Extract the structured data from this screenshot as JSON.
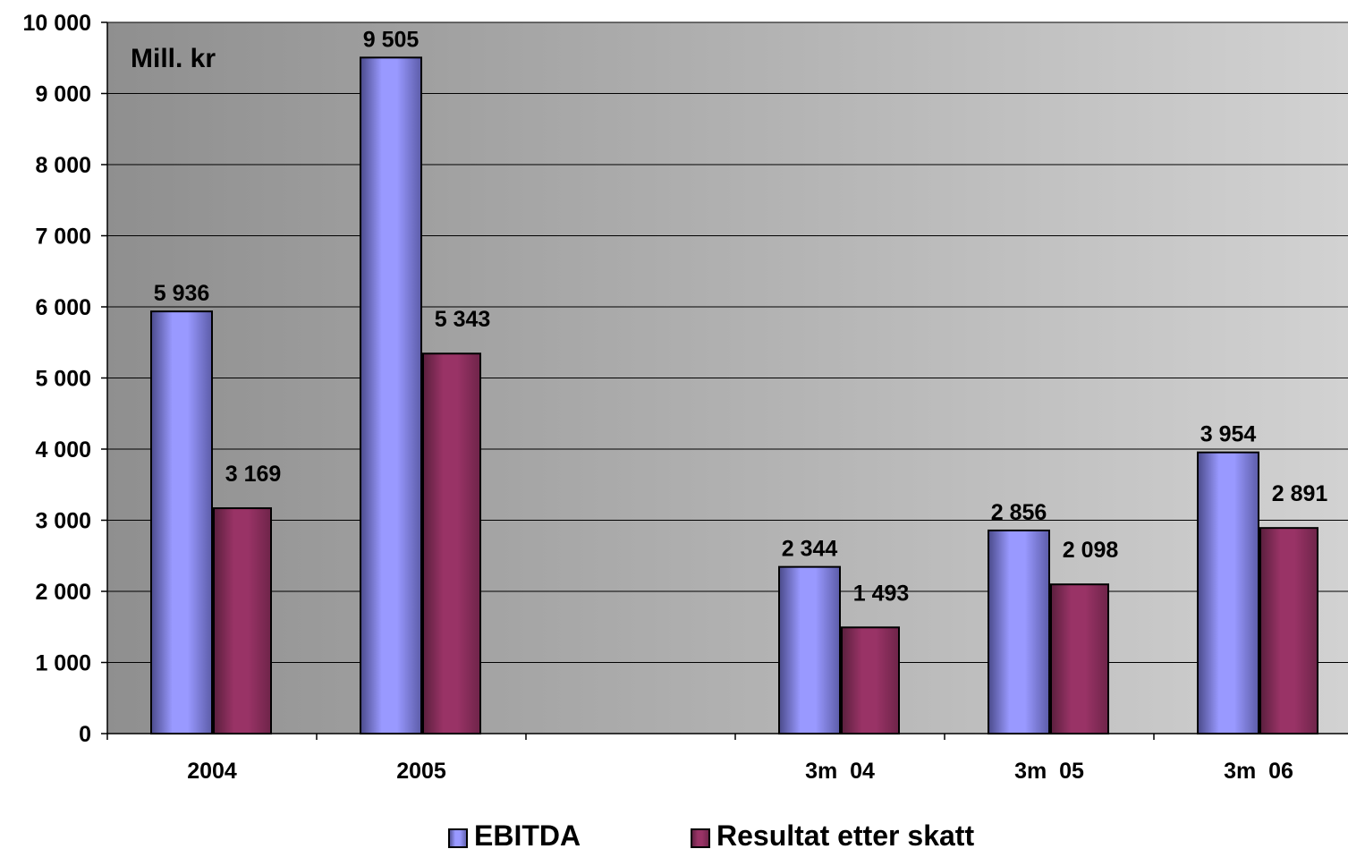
{
  "chart_data": {
    "type": "bar",
    "title": "",
    "unit_label": "Mill. kr",
    "xlabel": "",
    "ylabel": "",
    "ylim": [
      0,
      10000
    ],
    "yticks": [
      0,
      1000,
      2000,
      3000,
      4000,
      5000,
      6000,
      7000,
      8000,
      9000,
      10000
    ],
    "ytick_labels": [
      "0",
      "1 000",
      "2 000",
      "3 000",
      "4 000",
      "5 000",
      "6 000",
      "7 000",
      "8 000",
      "9 000",
      "10 000"
    ],
    "categories": [
      "2004",
      "2005",
      "",
      "3m  04",
      "3m  05",
      "3m  06"
    ],
    "series": [
      {
        "name": "EBITDA",
        "color": "#9999ff",
        "values": [
          5936,
          9505,
          null,
          2344,
          2856,
          3954
        ],
        "labels": [
          "5 936",
          "9 505",
          "",
          "2 344",
          "2 856",
          "3 954"
        ]
      },
      {
        "name": "Resultat etter skatt",
        "color": "#993366",
        "values": [
          3169,
          5343,
          null,
          1493,
          2098,
          2891
        ],
        "labels": [
          "3 169",
          "5 343",
          "",
          "1 493",
          "2 098",
          "2 891"
        ]
      }
    ],
    "grid": true,
    "legend_position": "bottom",
    "plot_background": "#c0c0c0"
  }
}
